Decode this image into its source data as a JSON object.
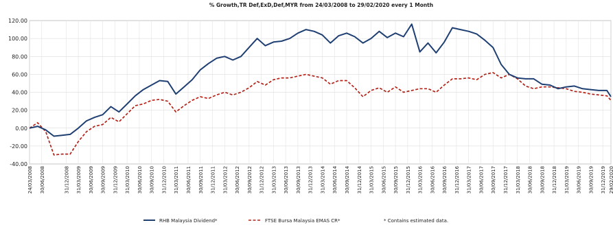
{
  "chart_data": {
    "type": "line",
    "title": "% Growth,TR Def,ExD,Def,MYR from 24/03/2008 to 29/02/2020 every 1 Month",
    "xlabel": "",
    "ylabel": "",
    "ylim": [
      -40,
      120
    ],
    "yticks": [
      "120.00",
      "100.00",
      "80.00",
      "60.00",
      "40.00",
      "20.00",
      "0.00",
      "-20.00",
      "-40.00"
    ],
    "xticks": [
      "24/03/2008",
      "30/06/2008",
      "31/12/2008",
      "31/03/2009",
      "30/06/2009",
      "30/09/2009",
      "31/12/2009",
      "31/03/2010",
      "30/06/2010",
      "30/09/2010",
      "31/12/2010",
      "31/03/2011",
      "30/06/2011",
      "30/09/2011",
      "31/12/2011",
      "31/03/2012",
      "30/06/2012",
      "30/09/2012",
      "31/12/2012",
      "31/03/2013",
      "30/06/2013",
      "30/09/2013",
      "31/12/2013",
      "31/03/2014",
      "30/06/2014",
      "30/09/2014",
      "31/12/2014",
      "31/03/2015",
      "30/06/2015",
      "30/09/2015",
      "31/12/2015",
      "31/03/2016",
      "30/06/2016",
      "30/09/2016",
      "31/12/2016",
      "31/03/2017",
      "30/06/2017",
      "30/09/2017",
      "31/12/2017",
      "31/03/2018",
      "30/06/2018",
      "30/09/2018",
      "31/12/2018",
      "31/03/2019",
      "30/06/2019",
      "30/09/2019",
      "31/12/2019",
      "29/02/2020"
    ],
    "xtick_months": [
      0,
      3,
      9,
      12,
      15,
      18,
      21,
      24,
      27,
      30,
      33,
      36,
      39,
      42,
      45,
      48,
      51,
      54,
      57,
      60,
      63,
      66,
      69,
      72,
      75,
      78,
      81,
      84,
      87,
      90,
      93,
      96,
      99,
      102,
      105,
      108,
      111,
      114,
      117,
      120,
      123,
      126,
      129,
      132,
      135,
      138,
      141,
      143
    ],
    "grid": true,
    "legend_position": "bottom",
    "footnote": "*  Contains estimated data.",
    "series": [
      {
        "name": "RHB Malaysia Dividend*",
        "color": "#1f3f73",
        "style": "solid",
        "x": [
          0,
          2,
          4,
          6,
          8,
          10,
          12,
          14,
          16,
          18,
          20,
          22,
          24,
          26,
          28,
          30,
          32,
          34,
          36,
          38,
          40,
          42,
          44,
          46,
          48,
          50,
          52,
          54,
          56,
          58,
          60,
          62,
          64,
          66,
          68,
          70,
          72,
          74,
          76,
          78,
          80,
          82,
          84,
          86,
          88,
          90,
          92,
          94,
          96,
          98,
          100,
          102,
          104,
          106,
          108,
          110,
          112,
          114,
          116,
          118,
          120,
          122,
          124,
          126,
          128,
          130,
          132,
          134,
          136,
          138,
          140,
          142,
          143
        ],
        "values": [
          0,
          2,
          -2,
          -9,
          -8,
          -7,
          0,
          8,
          12,
          15,
          24,
          18,
          27,
          36,
          43,
          48,
          53,
          52,
          38,
          46,
          54,
          65,
          72,
          78,
          80,
          76,
          80,
          90,
          100,
          92,
          96,
          97,
          100,
          106,
          110,
          108,
          104,
          95,
          103,
          106,
          102,
          95,
          100,
          108,
          101,
          106,
          102,
          116,
          85,
          95,
          84,
          96,
          112,
          110,
          108,
          105,
          98,
          90,
          71,
          60,
          56,
          55,
          55,
          49,
          48,
          44,
          46,
          47,
          44,
          43,
          42,
          42,
          35
        ]
      },
      {
        "name": "FTSE Bursa Malaysia EMAS CR*",
        "color": "#b32218",
        "style": "dashed",
        "x": [
          0,
          2,
          4,
          6,
          8,
          10,
          12,
          14,
          16,
          18,
          20,
          22,
          24,
          26,
          28,
          30,
          32,
          34,
          36,
          38,
          40,
          42,
          44,
          46,
          48,
          50,
          52,
          54,
          56,
          58,
          60,
          62,
          64,
          66,
          68,
          70,
          72,
          74,
          76,
          78,
          80,
          82,
          84,
          86,
          88,
          90,
          92,
          94,
          96,
          98,
          100,
          102,
          104,
          106,
          108,
          110,
          112,
          114,
          116,
          118,
          120,
          122,
          124,
          126,
          128,
          130,
          132,
          134,
          136,
          138,
          140,
          142,
          143
        ],
        "values": [
          0,
          6,
          -4,
          -30,
          -29,
          -29,
          -15,
          -4,
          2,
          4,
          12,
          7,
          16,
          25,
          27,
          31,
          32,
          30,
          18,
          25,
          31,
          35,
          33,
          37,
          40,
          37,
          40,
          45,
          52,
          48,
          54,
          56,
          56,
          58,
          60,
          58,
          56,
          49,
          53,
          53,
          45,
          35,
          42,
          45,
          40,
          46,
          40,
          42,
          44,
          44,
          40,
          48,
          55,
          55,
          56,
          54,
          60,
          62,
          56,
          60,
          55,
          47,
          44,
          46,
          46,
          45,
          44,
          41,
          40,
          38,
          37,
          36,
          31
        ]
      }
    ]
  }
}
